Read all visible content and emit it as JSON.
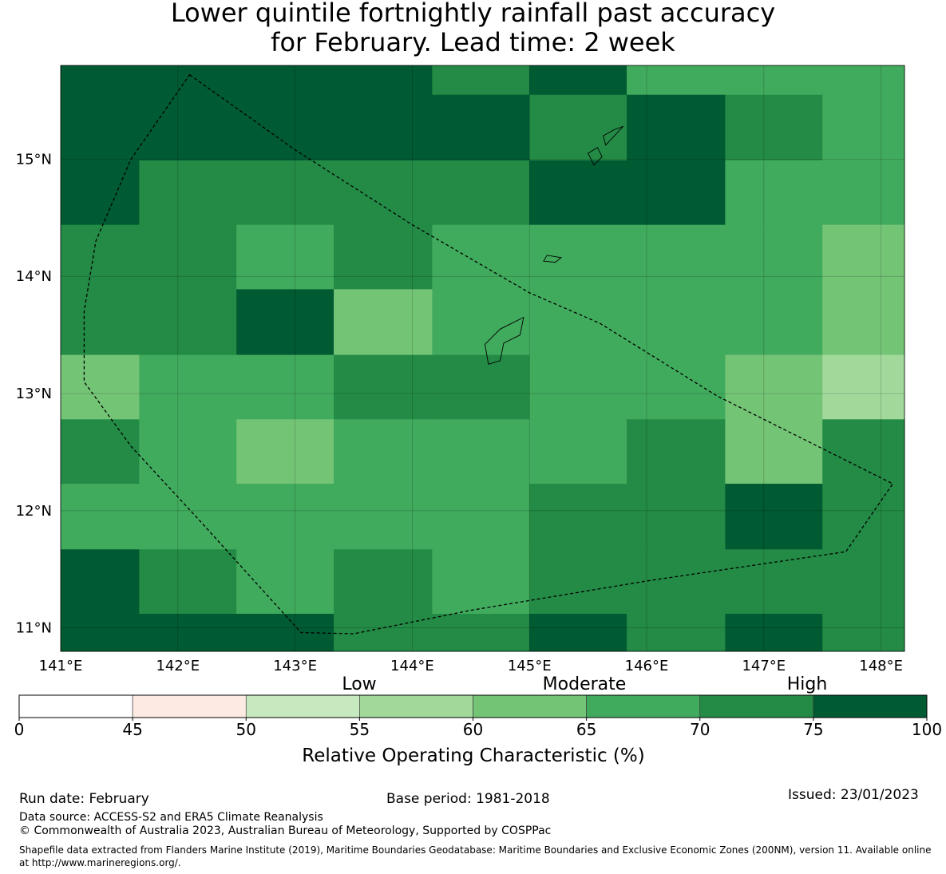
{
  "title": {
    "line1": "Lower quintile fortnightly rainfall past accuracy",
    "line2": "for February. Lead time: 2 week"
  },
  "map": {
    "lon_ticks": [
      "141°E",
      "142°E",
      "143°E",
      "144°E",
      "145°E",
      "146°E",
      "147°E",
      "148°E"
    ],
    "lat_ticks": [
      "15°N",
      "14°N",
      "13°N",
      "12°N",
      "11°N"
    ],
    "extent": {
      "lon": [
        141.0,
        148.2
      ],
      "lat": [
        10.8,
        15.8
      ]
    },
    "cell_palette": [
      "#005a32",
      "#238b45",
      "#41ab5d",
      "#74c476",
      "#a1d99b"
    ],
    "grid": {
      "lon_edges": [
        141.0,
        141.67,
        142.5,
        143.33,
        144.17,
        145.0,
        145.83,
        146.67,
        147.5,
        148.2
      ],
      "lat_edges": [
        15.8,
        15.55,
        14.99,
        14.44,
        13.89,
        13.33,
        12.78,
        12.23,
        11.67,
        11.12,
        10.8
      ],
      "rows": [
        [
          0,
          0,
          0,
          0,
          1,
          0,
          2,
          2,
          2
        ],
        [
          0,
          0,
          0,
          0,
          0,
          1,
          0,
          1,
          2
        ],
        [
          0,
          1,
          1,
          1,
          1,
          0,
          0,
          2,
          2
        ],
        [
          1,
          1,
          2,
          1,
          2,
          2,
          2,
          2,
          3
        ],
        [
          1,
          1,
          0,
          3,
          2,
          2,
          2,
          2,
          3
        ],
        [
          3,
          2,
          2,
          1,
          1,
          2,
          2,
          3,
          4
        ],
        [
          1,
          2,
          3,
          2,
          2,
          2,
          1,
          3,
          1
        ],
        [
          2,
          2,
          2,
          2,
          2,
          1,
          1,
          0,
          1
        ],
        [
          0,
          1,
          2,
          1,
          2,
          1,
          1,
          1,
          1
        ],
        [
          0,
          0,
          0,
          1,
          1,
          0,
          1,
          0,
          1
        ]
      ]
    },
    "boundary": [
      [
        142.1,
        15.72
      ],
      [
        143.0,
        15.08
      ],
      [
        144.0,
        14.44
      ],
      [
        145.0,
        13.86
      ],
      [
        145.6,
        13.6
      ],
      [
        146.6,
        12.98
      ],
      [
        148.1,
        12.23
      ],
      [
        147.7,
        11.65
      ],
      [
        146.0,
        11.4
      ],
      [
        144.5,
        11.15
      ],
      [
        143.5,
        10.95
      ],
      [
        143.05,
        10.96
      ],
      [
        142.2,
        11.9
      ],
      [
        141.6,
        12.55
      ],
      [
        141.2,
        13.1
      ],
      [
        141.2,
        13.7
      ],
      [
        141.3,
        14.3
      ],
      [
        141.6,
        15.0
      ],
      [
        142.1,
        15.72
      ]
    ],
    "islands": [
      [
        [
          144.95,
          13.65
        ],
        [
          144.75,
          13.55
        ],
        [
          144.62,
          13.42
        ],
        [
          144.65,
          13.25
        ],
        [
          144.75,
          13.28
        ],
        [
          144.78,
          13.43
        ],
        [
          144.92,
          13.5
        ]
      ],
      [
        [
          145.72,
          15.25
        ],
        [
          145.63,
          15.2
        ],
        [
          145.65,
          15.12
        ],
        [
          145.8,
          15.28
        ]
      ],
      [
        [
          145.58,
          15.1
        ],
        [
          145.5,
          15.05
        ],
        [
          145.55,
          14.95
        ],
        [
          145.62,
          15.02
        ]
      ],
      [
        [
          145.15,
          14.18
        ],
        [
          145.27,
          14.16
        ],
        [
          145.22,
          14.12
        ],
        [
          145.12,
          14.13
        ]
      ]
    ]
  },
  "legend": {
    "categories": [
      {
        "label": "Low",
        "key": "low"
      },
      {
        "label": "Moderate",
        "key": "moderate"
      },
      {
        "label": "High",
        "key": "high"
      }
    ],
    "bins": [
      {
        "from": 0,
        "to": 45,
        "color": "#ffffff"
      },
      {
        "from": 45,
        "to": 50,
        "color": "#fdebe3"
      },
      {
        "from": 50,
        "to": 55,
        "color": "#c7e9c0"
      },
      {
        "from": 55,
        "to": 60,
        "color": "#a1d99b"
      },
      {
        "from": 60,
        "to": 65,
        "color": "#74c476"
      },
      {
        "from": 65,
        "to": 70,
        "color": "#41ab5d"
      },
      {
        "from": 70,
        "to": 75,
        "color": "#238b45"
      },
      {
        "from": 75,
        "to": 100,
        "color": "#005a32"
      }
    ],
    "tick_labels": [
      "0",
      "45",
      "50",
      "55",
      "60",
      "65",
      "70",
      "75",
      "100"
    ],
    "axis_label": "Relative Operating Characteristic (%)"
  },
  "footer": {
    "run_date": "Run date: February",
    "base_period": "Base period: 1981-2018",
    "issued": "Issued: 23/01/2023",
    "data_source": "Data source: ACCESS-S2 and ERA5 Climate Reanalysis",
    "copyright": "© Commonwealth of Australia 2023, Australian Bureau of Meteorology, Supported by COSPPac",
    "shapefile_credit": "Shapefile data extracted from Flanders Marine Institute (2019), Maritime Boundaries Geodatabase: Maritime Boundaries and Exclusive Economic Zones (200NM), version 11. Available online at http://www.marineregions.org/."
  }
}
